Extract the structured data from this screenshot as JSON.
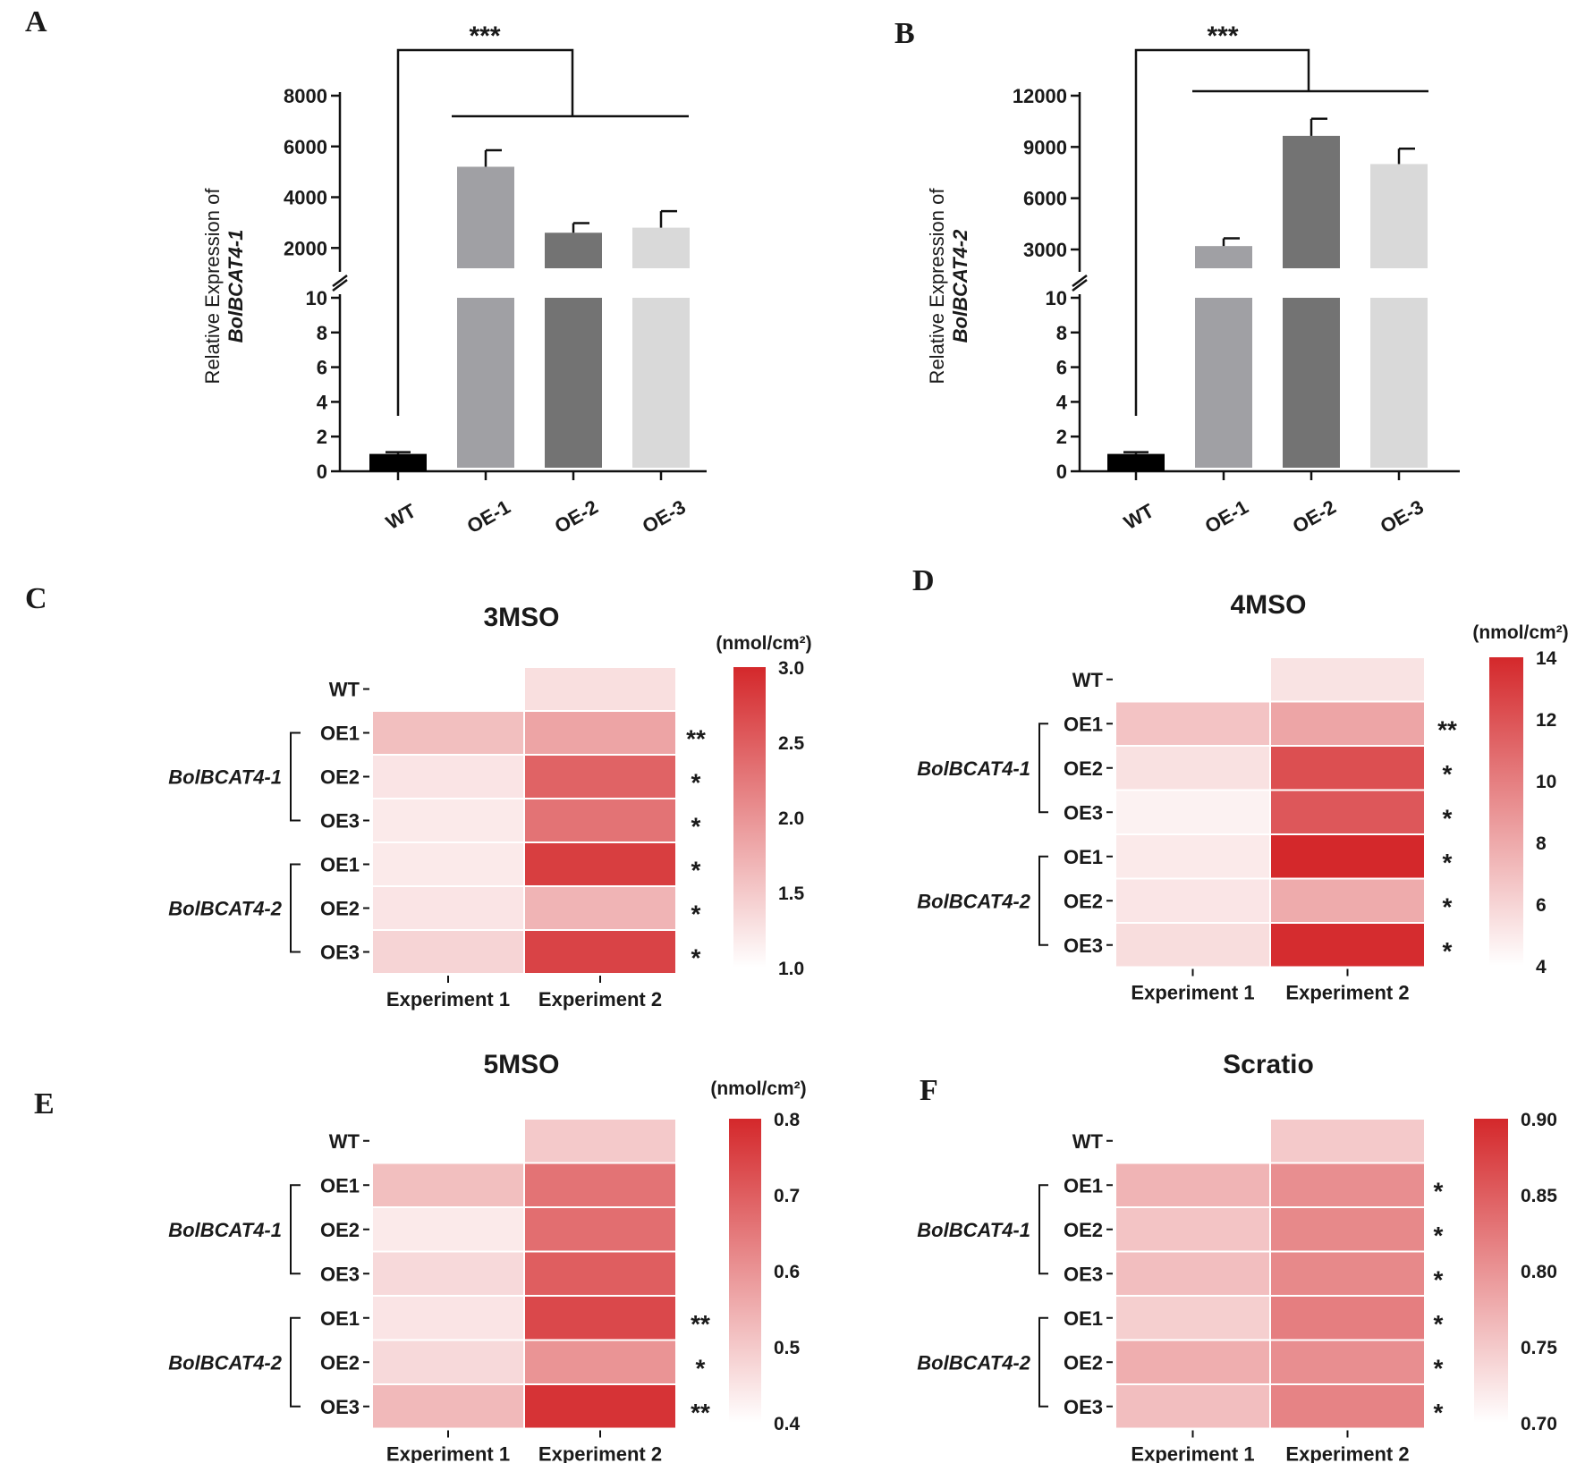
{
  "panels": {
    "bar_A": {
      "letter": "A",
      "ylabel_line1": "Relative Expression of",
      "ylabel_line2": "BolBCAT4-1",
      "significance": "***"
    },
    "bar_B": {
      "letter": "B",
      "ylabel_line1": "Relative Expression of",
      "ylabel_line2": "BolBCAT4-2",
      "significance": "***"
    },
    "hm_C": {
      "letter": "C"
    },
    "hm_D": {
      "letter": "D"
    },
    "hm_E": {
      "letter": "E"
    },
    "hm_F": {
      "letter": "F"
    }
  },
  "chart_data": [
    {
      "id": "A",
      "type": "bar",
      "title": "",
      "xlabel": "",
      "ylabel": "Relative Expression of BolBCAT4-1",
      "categories": [
        "WT",
        "OE-1",
        "OE-2",
        "OE-3"
      ],
      "values": [
        1,
        5200,
        2600,
        2800
      ],
      "errors": [
        0.1,
        650,
        380,
        650
      ],
      "bar_colors": [
        "#000000",
        "#a0a0a4",
        "#737373",
        "#d9d9d9"
      ],
      "ylim_lower": [
        0,
        10
      ],
      "ylim_upper": [
        1200,
        8000
      ],
      "yticks_lower": [
        "0",
        "2",
        "4",
        "6",
        "8",
        "10"
      ],
      "yticks_upper": [
        "2000",
        "4000",
        "6000",
        "8000"
      ],
      "significance": "***"
    },
    {
      "id": "B",
      "type": "bar",
      "title": "",
      "xlabel": "",
      "ylabel": "Relative Expression of BolBCAT4-2",
      "categories": [
        "WT",
        "OE-1",
        "OE-2",
        "OE-3"
      ],
      "values": [
        1,
        3200,
        9650,
        8000
      ],
      "errors": [
        0.1,
        450,
        1000,
        900
      ],
      "bar_colors": [
        "#000000",
        "#a0a0a4",
        "#737373",
        "#d9d9d9"
      ],
      "ylim_lower": [
        0,
        10
      ],
      "ylim_upper": [
        1900,
        12000
      ],
      "yticks_lower": [
        "0",
        "2",
        "4",
        "6",
        "8",
        "10"
      ],
      "yticks_upper": [
        "3000",
        "6000",
        "9000",
        "12000"
      ],
      "significance": "***"
    },
    {
      "id": "C",
      "type": "heatmap",
      "title": "3MSO",
      "unit": "(nmol/cm²)",
      "columns": [
        "Experiment 1",
        "Experiment 2"
      ],
      "rows": [
        "WT",
        "OE1",
        "OE2",
        "OE3",
        "OE1",
        "OE2",
        "OE3"
      ],
      "groups": [
        {
          "label": "BolBCAT4-1",
          "from": 1,
          "to": 3
        },
        {
          "label": "BolBCAT4-2",
          "from": 4,
          "to": 6
        }
      ],
      "values": [
        [
          null,
          1.3
        ],
        [
          1.6,
          1.85
        ],
        [
          1.25,
          2.45
        ],
        [
          1.2,
          2.3
        ],
        [
          1.2,
          2.8
        ],
        [
          1.25,
          1.7
        ],
        [
          1.4,
          2.75
        ]
      ],
      "significance": [
        "",
        "**",
        "*",
        "*",
        "*",
        "*",
        "*"
      ],
      "colorbar": {
        "min": 1.0,
        "max": 3.0,
        "ticks": [
          "3.0",
          "2.5",
          "2.0",
          "1.5",
          "1.0"
        ]
      }
    },
    {
      "id": "D",
      "type": "heatmap",
      "title": "4MSO",
      "unit": "(nmol/cm²)",
      "columns": [
        "Experiment 1",
        "Experiment 2"
      ],
      "rows": [
        "WT",
        "OE1",
        "OE2",
        "OE3",
        "OE1",
        "OE2",
        "OE3"
      ],
      "groups": [
        {
          "label": "BolBCAT4-1",
          "from": 1,
          "to": 3
        },
        {
          "label": "BolBCAT4-2",
          "from": 4,
          "to": 6
        }
      ],
      "values": [
        [
          null,
          5.3
        ],
        [
          6.8,
          8.2
        ],
        [
          5.4,
          12.2
        ],
        [
          4.6,
          11.8
        ],
        [
          5.0,
          14.0
        ],
        [
          5.2,
          7.9
        ],
        [
          5.6,
          13.8
        ]
      ],
      "significance": [
        "",
        "**",
        "*",
        "*",
        "*",
        "*",
        "*"
      ],
      "colorbar": {
        "min": 4,
        "max": 14,
        "ticks": [
          "14",
          "12",
          "10",
          "8",
          "6",
          "4"
        ]
      }
    },
    {
      "id": "E",
      "type": "heatmap",
      "title": "5MSO",
      "unit": "(nmol/cm²)",
      "columns": [
        "Experiment 1",
        "Experiment 2"
      ],
      "rows": [
        "WT",
        "OE1",
        "OE2",
        "OE3",
        "OE1",
        "OE2",
        "OE3"
      ],
      "groups": [
        {
          "label": "BolBCAT4-1",
          "from": 1,
          "to": 3
        },
        {
          "label": "BolBCAT4-2",
          "from": 4,
          "to": 6
        }
      ],
      "values": [
        [
          null,
          0.5
        ],
        [
          0.52,
          0.66
        ],
        [
          0.44,
          0.67
        ],
        [
          0.47,
          0.7
        ],
        [
          0.45,
          0.74
        ],
        [
          0.47,
          0.6
        ],
        [
          0.53,
          0.78
        ]
      ],
      "significance": [
        "",
        "",
        "",
        "",
        "**",
        "*",
        "**"
      ],
      "colorbar": {
        "min": 0.4,
        "max": 0.8,
        "ticks": [
          "0.8",
          "0.7",
          "0.6",
          "0.5",
          "0.4"
        ]
      }
    },
    {
      "id": "F",
      "type": "heatmap",
      "title": "Scratio",
      "unit": "",
      "columns": [
        "Experiment 1",
        "Experiment 2"
      ],
      "rows": [
        "WT",
        "OE1",
        "OE2",
        "OE3",
        "OE1",
        "OE2",
        "OE3"
      ],
      "groups": [
        {
          "label": "BolBCAT4-1",
          "from": 1,
          "to": 3
        },
        {
          "label": "BolBCAT4-2",
          "from": 4,
          "to": 6
        }
      ],
      "values": [
        [
          null,
          0.75
        ],
        [
          0.77,
          0.805
        ],
        [
          0.755,
          0.81
        ],
        [
          0.76,
          0.81
        ],
        [
          0.745,
          0.82
        ],
        [
          0.775,
          0.805
        ],
        [
          0.76,
          0.815
        ]
      ],
      "significance": [
        "",
        "*",
        "*",
        "*",
        "*",
        "*",
        "*"
      ],
      "colorbar": {
        "min": 0.7,
        "max": 0.9,
        "ticks": [
          "0.90",
          "0.85",
          "0.80",
          "0.75",
          "0.70"
        ]
      }
    }
  ]
}
